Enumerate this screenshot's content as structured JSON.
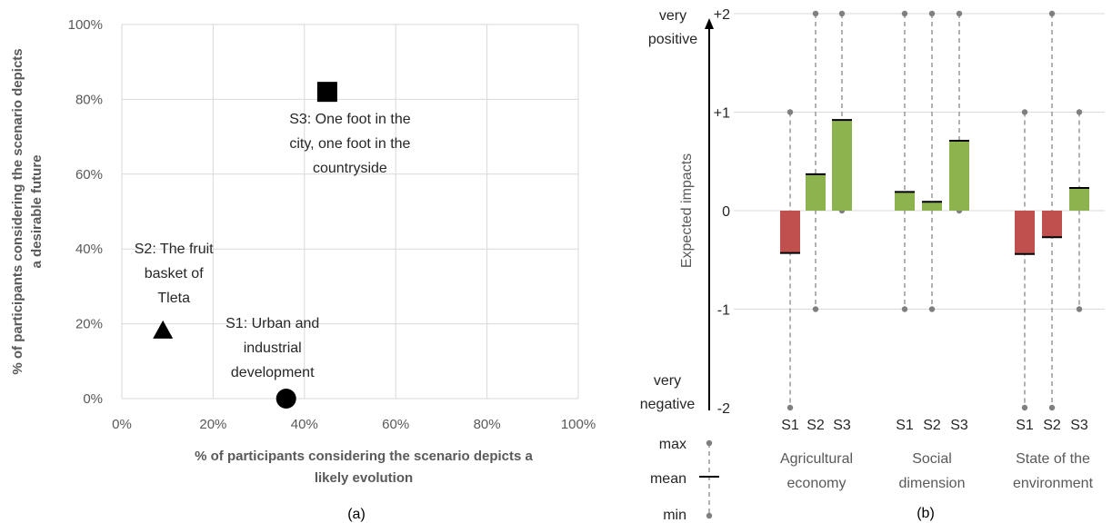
{
  "chart_data": [
    {
      "type": "scatter",
      "caption": "(a)",
      "xlabel": "% of participants considering the scenario depicts a likely evolution",
      "ylabel": "% of participants considering the scenario depicts a desirable future",
      "xlim": [
        0,
        100
      ],
      "ylim": [
        0,
        100
      ],
      "xticks": [
        "0%",
        "20%",
        "40%",
        "60%",
        "80%",
        "100%"
      ],
      "yticks": [
        "0%",
        "20%",
        "40%",
        "60%",
        "80%",
        "100%"
      ],
      "grid": true,
      "points": [
        {
          "label": "S1: Urban and industrial development",
          "label_lines": [
            "S1: Urban and",
            "industrial",
            "development"
          ],
          "marker": "circle",
          "x": 36,
          "y": 0
        },
        {
          "label": "S2: The fruit basket of Tleta",
          "label_lines": [
            "S2: The fruit",
            "basket of",
            "Tleta"
          ],
          "marker": "triangle",
          "x": 9,
          "y": 18
        },
        {
          "label": "S3: One foot in the city, one foot in the countryside",
          "label_lines": [
            "S3: One foot in the",
            "city, one foot in the",
            "countryside"
          ],
          "marker": "square",
          "x": 45,
          "y": 82
        }
      ]
    },
    {
      "type": "bar",
      "caption": "(b)",
      "ylabel": "Expected impacts",
      "ylim": [
        -2,
        2
      ],
      "yticks": [
        "+2",
        "+1",
        "0",
        "-1",
        "-2"
      ],
      "arrow_top_label": [
        "very",
        "positive"
      ],
      "arrow_bottom_label": [
        "very",
        "negative"
      ],
      "colors": {
        "positive": "#8db34f",
        "negative": "#c0504d"
      },
      "groups": [
        {
          "name_lines": [
            "Agricultural",
            "economy"
          ],
          "bars": [
            {
              "label": "S1",
              "mean": -0.43,
              "min": -2,
              "max": 1
            },
            {
              "label": "S2",
              "mean": 0.37,
              "min": -1,
              "max": 2
            },
            {
              "label": "S3",
              "mean": 0.92,
              "min": 0,
              "max": 2
            }
          ]
        },
        {
          "name_lines": [
            "Social",
            "dimension"
          ],
          "bars": [
            {
              "label": "S1",
              "mean": 0.19,
              "min": -1,
              "max": 2
            },
            {
              "label": "S2",
              "mean": 0.09,
              "min": -1,
              "max": 2
            },
            {
              "label": "S3",
              "mean": 0.71,
              "min": 0,
              "max": 2
            }
          ]
        },
        {
          "name_lines": [
            "State of the",
            "environment"
          ],
          "bars": [
            {
              "label": "S1",
              "mean": -0.44,
              "min": -2,
              "max": 1
            },
            {
              "label": "S2",
              "mean": -0.27,
              "min": -2,
              "max": 2
            },
            {
              "label": "S3",
              "mean": 0.23,
              "min": -1,
              "max": 1
            }
          ]
        }
      ],
      "legend": {
        "max": "max",
        "mean": "mean",
        "min": "min"
      }
    }
  ]
}
